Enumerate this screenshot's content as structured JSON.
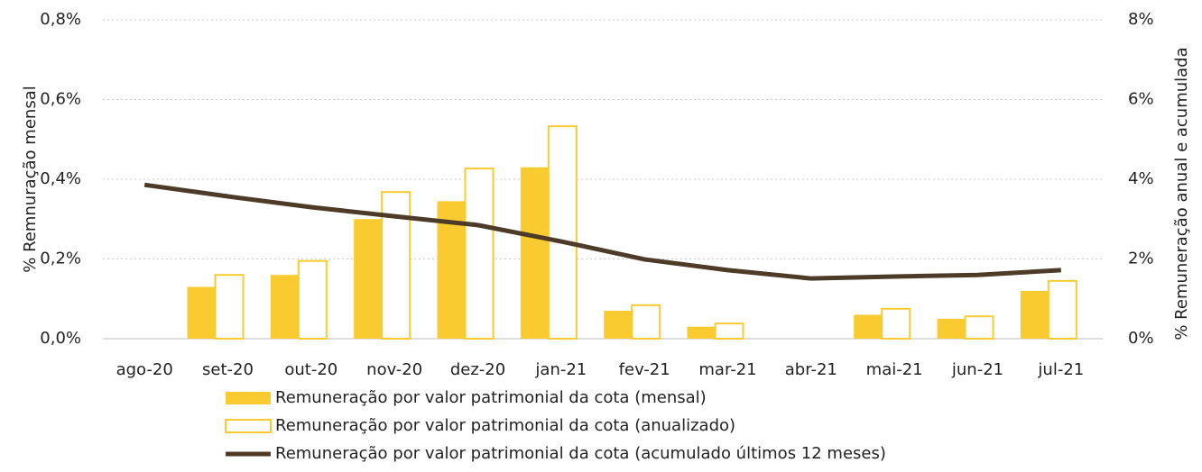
{
  "chart_data": {
    "type": "bar",
    "categories": [
      "ago-20",
      "set-20",
      "out-20",
      "nov-20",
      "dez-20",
      "jan-21",
      "fev-21",
      "mar-21",
      "abr-21",
      "mai-21",
      "jun-21",
      "jul-21"
    ],
    "y_label": "% Remnuração mensal",
    "y2_label": "% Remuneração anual e acumulada",
    "ylim": [
      0,
      0.8
    ],
    "yticks": [
      {
        "value": 0,
        "label": "0,0%"
      },
      {
        "value": 0.2,
        "label": "0,2%"
      },
      {
        "value": 0.4,
        "label": "0,4%"
      },
      {
        "value": 0.6,
        "label": "0,6%"
      },
      {
        "value": 0.8,
        "label": "0,8%"
      }
    ],
    "y2lim": [
      0,
      8
    ],
    "y2ticks": [
      {
        "value": 0,
        "label": "0%"
      },
      {
        "value": 2,
        "label": "2%"
      },
      {
        "value": 4,
        "label": "4%"
      },
      {
        "value": 6,
        "label": "6%"
      },
      {
        "value": 8,
        "label": "8%"
      }
    ],
    "grid": true,
    "series": [
      {
        "name": "Remuneração por valor patrimonial da cota (mensal)",
        "kind": "bar",
        "style": "filled",
        "color": "#f9cb30",
        "values": [
          0,
          0.13,
          0.16,
          0.3,
          0.345,
          0.43,
          0.07,
          0.03,
          0,
          0.06,
          0.05,
          0.12
        ]
      },
      {
        "name": "Remuneração por valor patrimonial da cota (anualizado)",
        "kind": "bar",
        "style": "outline",
        "color": "#f9cb30",
        "axis": "y2",
        "values": [
          0,
          1.6,
          1.95,
          3.68,
          4.27,
          5.33,
          0.84,
          0.38,
          0,
          0.75,
          0.56,
          1.45
        ]
      },
      {
        "name": "Remuneração por valor patrimonial da cota (acumulado últimos 12 meses)",
        "kind": "line",
        "color": "#4d3b28",
        "axis": "y2",
        "values": [
          3.86,
          3.57,
          3.3,
          3.07,
          2.85,
          2.44,
          1.99,
          1.72,
          1.51,
          1.56,
          1.6,
          1.72
        ]
      }
    ]
  }
}
